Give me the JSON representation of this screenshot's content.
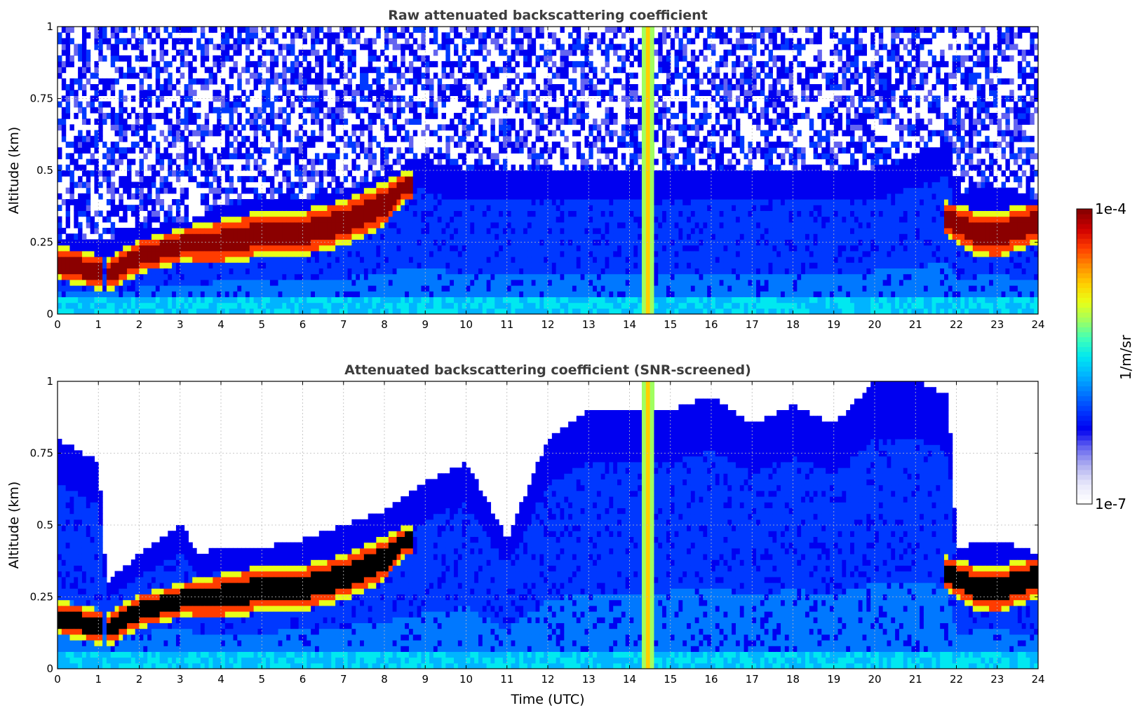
{
  "colormap": [
    "#ffffff",
    "#e6e6fa",
    "#b0b0f0",
    "#6464f0",
    "#0000f0",
    "#0038ff",
    "#0078ff",
    "#00b4ff",
    "#00e8f0",
    "#40ffb8",
    "#a0ff60",
    "#e8ff18",
    "#ffd000",
    "#ff8c00",
    "#ff3c00",
    "#d00000",
    "#8b0000"
  ],
  "chart_data": [
    {
      "type": "heatmap",
      "title": "Raw attenuated backscattering coefficient",
      "xlabel": "",
      "ylabel": "Altitude (km)",
      "xlim": [
        0,
        24
      ],
      "ylim": [
        0,
        1
      ],
      "xticks": [
        "0",
        "1",
        "2",
        "3",
        "4",
        "5",
        "6",
        "7",
        "8",
        "9",
        "10",
        "11",
        "12",
        "13",
        "14",
        "15",
        "16",
        "17",
        "18",
        "19",
        "20",
        "21",
        "22",
        "23",
        "24"
      ],
      "yticks": [
        "0",
        "0.25",
        "0.5",
        "0.75",
        "1"
      ],
      "grid": true,
      "screened": false,
      "layer_top_km": [
        [
          0.0,
          0.25
        ],
        [
          1.2,
          0.26
        ],
        [
          1.5,
          0.28
        ],
        [
          2.0,
          0.3
        ],
        [
          3.0,
          0.32
        ],
        [
          3.5,
          0.34
        ],
        [
          4.0,
          0.38
        ],
        [
          5.0,
          0.4
        ],
        [
          6.0,
          0.4
        ],
        [
          7.0,
          0.43
        ],
        [
          8.0,
          0.48
        ],
        [
          8.5,
          0.52
        ],
        [
          9.0,
          0.55
        ],
        [
          9.5,
          0.5
        ],
        [
          10,
          0.5
        ],
        [
          11,
          0.5
        ],
        [
          12,
          0.5
        ],
        [
          13,
          0.5
        ],
        [
          14,
          0.5
        ],
        [
          15,
          0.5
        ],
        [
          16,
          0.5
        ],
        [
          17,
          0.5
        ],
        [
          18,
          0.5
        ],
        [
          19,
          0.5
        ],
        [
          20,
          0.5
        ],
        [
          21,
          0.55
        ],
        [
          21.8,
          0.6
        ],
        [
          22,
          0.42
        ],
        [
          23,
          0.45
        ],
        [
          24,
          0.4
        ]
      ],
      "aerosol_core_km": [
        [
          0.0,
          0.18,
          0.06
        ],
        [
          1.25,
          0.14,
          0.06
        ],
        [
          2.0,
          0.2,
          0.06
        ],
        [
          3.0,
          0.24,
          0.06
        ],
        [
          4.0,
          0.25,
          0.08
        ],
        [
          5.0,
          0.28,
          0.08
        ],
        [
          6.0,
          0.28,
          0.08
        ],
        [
          7.0,
          0.32,
          0.08
        ],
        [
          8.0,
          0.38,
          0.08
        ],
        [
          8.5,
          0.45,
          0.05
        ],
        [
          21.8,
          0.33,
          0.06
        ],
        [
          22.5,
          0.28,
          0.08
        ],
        [
          23.0,
          0.27,
          0.08
        ],
        [
          23.5,
          0.3,
          0.08
        ],
        [
          24,
          0.32,
          0.07
        ]
      ]
    },
    {
      "type": "heatmap",
      "title": "Attenuated backscattering coefficient (SNR-screened)",
      "xlabel": "Time (UTC)",
      "ylabel": "Altitude (km)",
      "xlim": [
        0,
        24
      ],
      "ylim": [
        0,
        1
      ],
      "xticks": [
        "0",
        "1",
        "2",
        "3",
        "4",
        "5",
        "6",
        "7",
        "8",
        "9",
        "10",
        "11",
        "12",
        "13",
        "14",
        "15",
        "16",
        "17",
        "18",
        "19",
        "20",
        "21",
        "22",
        "23",
        "24"
      ],
      "yticks": [
        "0",
        "0.25",
        "0.5",
        "0.75",
        "1"
      ],
      "grid": true,
      "screened": true,
      "layer_top_km": [
        [
          0.0,
          0.8
        ],
        [
          1.0,
          0.72
        ],
        [
          1.2,
          0.3
        ],
        [
          2.0,
          0.4
        ],
        [
          3.0,
          0.5
        ],
        [
          3.5,
          0.4
        ],
        [
          4.0,
          0.42
        ],
        [
          5.0,
          0.42
        ],
        [
          6.0,
          0.45
        ],
        [
          7.0,
          0.5
        ],
        [
          8.0,
          0.55
        ],
        [
          9.0,
          0.65
        ],
        [
          10,
          0.72
        ],
        [
          11,
          0.45
        ],
        [
          12,
          0.8
        ],
        [
          13,
          0.9
        ],
        [
          14,
          0.9
        ],
        [
          15,
          0.9
        ],
        [
          16,
          0.95
        ],
        [
          17,
          0.85
        ],
        [
          18,
          0.92
        ],
        [
          19,
          0.85
        ],
        [
          20,
          1.0
        ],
        [
          21,
          1.0
        ],
        [
          21.8,
          0.95
        ],
        [
          22,
          0.42
        ],
        [
          23,
          0.45
        ],
        [
          24,
          0.4
        ]
      ],
      "aerosol_core_km": [
        [
          0.0,
          0.18,
          0.06
        ],
        [
          1.25,
          0.14,
          0.06
        ],
        [
          2.0,
          0.2,
          0.06
        ],
        [
          3.0,
          0.24,
          0.06
        ],
        [
          4.0,
          0.25,
          0.08
        ],
        [
          5.0,
          0.28,
          0.08
        ],
        [
          6.0,
          0.28,
          0.08
        ],
        [
          7.0,
          0.32,
          0.08
        ],
        [
          8.0,
          0.38,
          0.08
        ],
        [
          8.5,
          0.45,
          0.05
        ],
        [
          21.8,
          0.33,
          0.06
        ],
        [
          22.5,
          0.28,
          0.08
        ],
        [
          23.0,
          0.27,
          0.08
        ],
        [
          23.5,
          0.3,
          0.08
        ],
        [
          24,
          0.32,
          0.07
        ]
      ]
    }
  ],
  "colorbar": {
    "label": "1/m/sr",
    "max_label": "1e-4",
    "min_label": "1e-7",
    "scale": "log",
    "range": [
      1e-07,
      0.0001
    ]
  }
}
